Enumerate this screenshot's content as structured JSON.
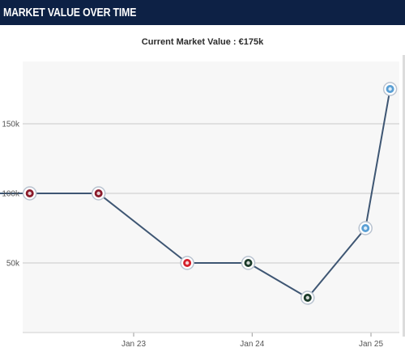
{
  "header": {
    "title": "MARKET VALUE OVER TIME"
  },
  "chart_data": {
    "type": "line",
    "title": "MARKET VALUE OVER TIME",
    "subtitle": "Current Market Value : €175k",
    "xlabel": "",
    "ylabel": "",
    "x_ticks": [
      "Jan 23",
      "Jan 24",
      "Jan 25"
    ],
    "y_ticks": [
      "50k",
      "100k",
      "150k"
    ],
    "ylim": [
      0,
      190000
    ],
    "grid": "horizontal",
    "line_color": "#3e5673",
    "series": [
      {
        "values": [
          {
            "x": "2021-09-15",
            "y": 100000,
            "club_color": "#8a1b2b"
          },
          {
            "x": "2022-02-15",
            "y": 100000,
            "club_color": "#8a1b2b"
          },
          {
            "x": "2022-09-15",
            "y": 100000,
            "club_color": "#8a1b2b"
          },
          {
            "x": "2023-06-15",
            "y": 50000,
            "club_color": "#d4202a"
          },
          {
            "x": "2023-12-20",
            "y": 50000,
            "club_color": "#1a3a2a"
          },
          {
            "x": "2024-06-20",
            "y": 25000,
            "club_color": "#1a3a2a"
          },
          {
            "x": "2024-12-15",
            "y": 75000,
            "club_color": "#5a9fd4"
          },
          {
            "x": "2025-03-01",
            "y": 175000,
            "club_color": "#5a9fd4"
          }
        ]
      }
    ]
  }
}
